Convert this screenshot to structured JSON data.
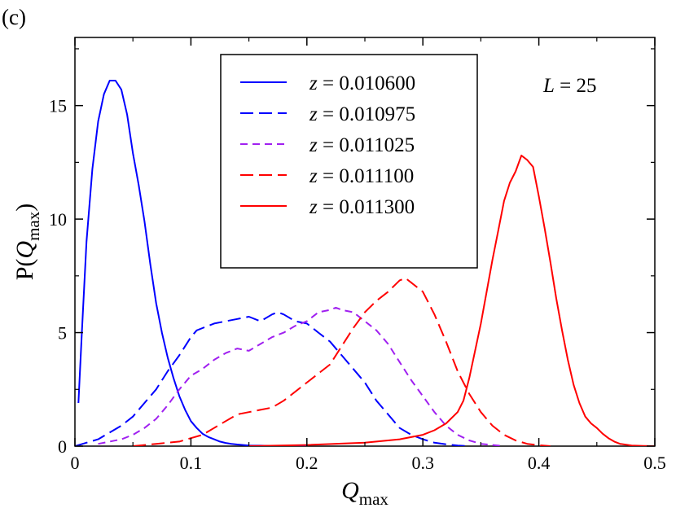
{
  "panel_label": "(c)",
  "annotation": {
    "var": "L",
    "eq": " = 25"
  },
  "chart_data": {
    "type": "line",
    "xlabel": {
      "main": "Q",
      "sub": "max"
    },
    "ylabel": {
      "pre": "P(",
      "main": "Q",
      "sub": "max",
      "post": ")"
    },
    "xlim": [
      0,
      0.5
    ],
    "ylim": [
      0,
      18
    ],
    "xticks": [
      0,
      0.1,
      0.2,
      0.3,
      0.4,
      0.5
    ],
    "xtick_labels": [
      "0",
      "0.1",
      "0.2",
      "0.3",
      "0.4",
      "0.5"
    ],
    "yticks": [
      0,
      5,
      10,
      15
    ],
    "ytick_labels": [
      "0",
      "5",
      "10",
      "15"
    ],
    "grid": false,
    "legend_position": "top-center",
    "series": [
      {
        "name": "z = 0.010600",
        "legend_var": "z",
        "legend_val": " = 0.010600",
        "color": "#0000ff",
        "dash": "none",
        "x": [
          0.003,
          0.006,
          0.01,
          0.015,
          0.02,
          0.025,
          0.03,
          0.035,
          0.04,
          0.045,
          0.05,
          0.055,
          0.06,
          0.065,
          0.07,
          0.075,
          0.08,
          0.085,
          0.09,
          0.095,
          0.1,
          0.105,
          0.11,
          0.115,
          0.12,
          0.125,
          0.13,
          0.135,
          0.14,
          0.145,
          0.15,
          0.16,
          0.17,
          0.18,
          0.2
        ],
        "y": [
          1.9,
          5.0,
          9.0,
          12.2,
          14.3,
          15.5,
          16.1,
          16.1,
          15.7,
          14.6,
          12.9,
          11.5,
          9.9,
          8.0,
          6.3,
          5.0,
          3.9,
          3.0,
          2.2,
          1.6,
          1.1,
          0.8,
          0.55,
          0.4,
          0.3,
          0.2,
          0.14,
          0.1,
          0.07,
          0.05,
          0.03,
          0.02,
          0.01,
          0.0,
          0.0
        ]
      },
      {
        "name": "z = 0.010975",
        "legend_var": "z",
        "legend_val": " = 0.010975",
        "color": "#0000ff",
        "dash": "long-dash",
        "x": [
          0.0,
          0.01,
          0.02,
          0.03,
          0.04,
          0.05,
          0.06,
          0.07,
          0.08,
          0.09,
          0.1,
          0.105,
          0.11,
          0.12,
          0.13,
          0.14,
          0.15,
          0.16,
          0.17,
          0.175,
          0.18,
          0.19,
          0.2,
          0.21,
          0.22,
          0.23,
          0.24,
          0.25,
          0.26,
          0.27,
          0.28,
          0.29,
          0.3,
          0.31,
          0.32,
          0.33,
          0.34
        ],
        "y": [
          0.0,
          0.15,
          0.3,
          0.6,
          0.9,
          1.3,
          1.9,
          2.5,
          3.3,
          4.0,
          4.8,
          5.1,
          5.2,
          5.4,
          5.5,
          5.6,
          5.7,
          5.5,
          5.8,
          5.9,
          5.8,
          5.5,
          5.4,
          5.0,
          4.6,
          4.0,
          3.4,
          2.8,
          2.0,
          1.4,
          0.8,
          0.5,
          0.3,
          0.15,
          0.08,
          0.03,
          0.0
        ]
      },
      {
        "name": "z = 0.011025",
        "legend_var": "z",
        "legend_val": " = 0.011025",
        "color": "#a020f0",
        "dash": "dash",
        "x": [
          0.02,
          0.03,
          0.04,
          0.05,
          0.06,
          0.07,
          0.08,
          0.09,
          0.1,
          0.11,
          0.12,
          0.13,
          0.14,
          0.15,
          0.16,
          0.17,
          0.18,
          0.19,
          0.2,
          0.21,
          0.22,
          0.225,
          0.23,
          0.24,
          0.25,
          0.26,
          0.27,
          0.28,
          0.29,
          0.3,
          0.31,
          0.32,
          0.33,
          0.34,
          0.35,
          0.36,
          0.37
        ],
        "y": [
          0.1,
          0.2,
          0.3,
          0.5,
          0.8,
          1.2,
          1.8,
          2.5,
          3.1,
          3.4,
          3.8,
          4.1,
          4.3,
          4.2,
          4.5,
          4.8,
          5.0,
          5.3,
          5.5,
          5.9,
          6.0,
          6.1,
          6.0,
          5.9,
          5.5,
          5.1,
          4.5,
          3.7,
          2.9,
          2.2,
          1.5,
          0.9,
          0.5,
          0.25,
          0.1,
          0.05,
          0.0
        ]
      },
      {
        "name": "z = 0.011100",
        "legend_var": "z",
        "legend_val": " = 0.011100",
        "color": "#ff0000",
        "dash": "long-dash",
        "x": [
          0.05,
          0.07,
          0.09,
          0.1,
          0.11,
          0.12,
          0.13,
          0.14,
          0.15,
          0.16,
          0.17,
          0.18,
          0.19,
          0.2,
          0.21,
          0.22,
          0.23,
          0.24,
          0.25,
          0.26,
          0.27,
          0.28,
          0.285,
          0.29,
          0.3,
          0.31,
          0.32,
          0.33,
          0.34,
          0.35,
          0.36,
          0.37,
          0.38,
          0.39,
          0.4,
          0.41
        ],
        "y": [
          0.0,
          0.1,
          0.2,
          0.35,
          0.5,
          0.8,
          1.1,
          1.4,
          1.5,
          1.6,
          1.7,
          2.0,
          2.4,
          2.8,
          3.2,
          3.6,
          4.4,
          5.2,
          5.9,
          6.4,
          6.8,
          7.3,
          7.4,
          7.2,
          6.8,
          5.8,
          4.6,
          3.3,
          2.3,
          1.5,
          0.9,
          0.5,
          0.25,
          0.1,
          0.04,
          0.0
        ]
      },
      {
        "name": "z = 0.011300",
        "legend_var": "z",
        "legend_val": " = 0.011300",
        "color": "#ff0000",
        "dash": "none",
        "x": [
          0.15,
          0.2,
          0.25,
          0.28,
          0.3,
          0.31,
          0.32,
          0.33,
          0.335,
          0.34,
          0.345,
          0.35,
          0.355,
          0.36,
          0.365,
          0.37,
          0.375,
          0.38,
          0.385,
          0.39,
          0.395,
          0.4,
          0.405,
          0.41,
          0.415,
          0.42,
          0.425,
          0.43,
          0.435,
          0.44,
          0.445,
          0.45,
          0.455,
          0.46,
          0.465,
          0.47,
          0.48,
          0.49,
          0.5
        ],
        "y": [
          0.0,
          0.05,
          0.15,
          0.3,
          0.5,
          0.7,
          1.0,
          1.5,
          2.0,
          3.0,
          4.2,
          5.4,
          6.8,
          8.2,
          9.5,
          10.8,
          11.6,
          12.1,
          12.8,
          12.6,
          12.3,
          11.0,
          9.6,
          8.1,
          6.5,
          5.1,
          3.8,
          2.7,
          1.9,
          1.3,
          1.0,
          0.8,
          0.55,
          0.35,
          0.2,
          0.1,
          0.03,
          0.01,
          0.0
        ]
      }
    ]
  }
}
